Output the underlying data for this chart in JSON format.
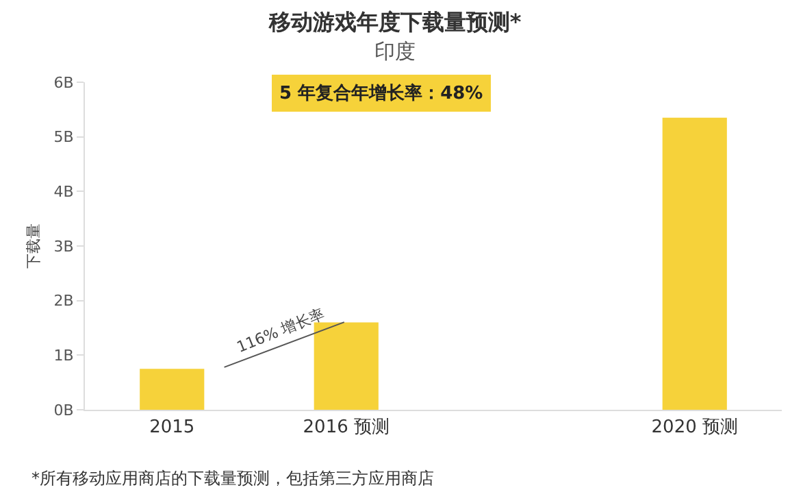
{
  "chart_data": {
    "type": "bar",
    "title": "移动游戏年度下载量预测*",
    "subtitle": "印度",
    "ylabel": "下载量",
    "categories": [
      "2015",
      "2016 预测",
      null,
      "2020 预测"
    ],
    "values": [
      0.75,
      1.6,
      null,
      5.35
    ],
    "color": "#f6d23a",
    "ylim": [
      0,
      6
    ],
    "yticks": [
      {
        "value": 0,
        "label": "0B"
      },
      {
        "value": 1,
        "label": "1B"
      },
      {
        "value": 2,
        "label": "2B"
      },
      {
        "value": 3,
        "label": "3B"
      },
      {
        "value": 4,
        "label": "4B"
      },
      {
        "value": 5,
        "label": "5B"
      },
      {
        "value": 6,
        "label": "6B"
      }
    ],
    "grid": false,
    "legend": false,
    "annotations": [
      "5 年复合年增长率：48%",
      "116% 增长率",
      "*所有移动应用商店的下载量预测，包括第三方应用商店"
    ]
  }
}
